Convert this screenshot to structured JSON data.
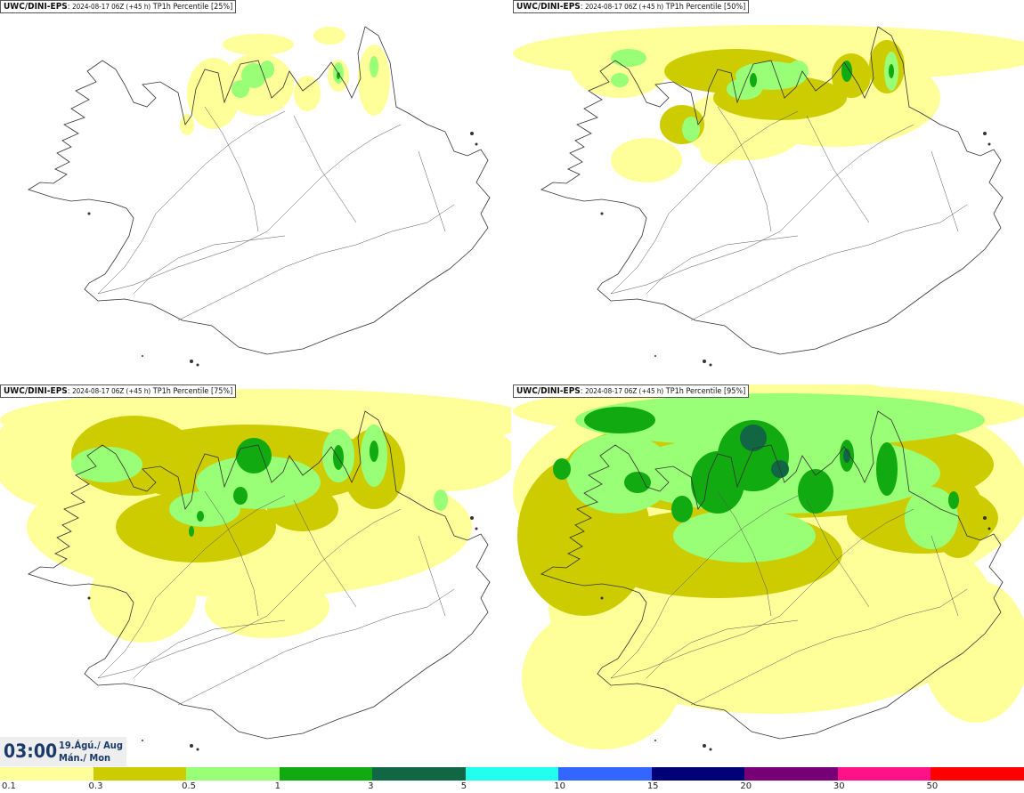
{
  "panels": [
    {
      "source": "UWC/DINI-EPS",
      "run": "2024-08-17 06Z (+45 h)",
      "field": "TP1h Percentile [25%]"
    },
    {
      "source": "UWC/DINI-EPS",
      "run": "2024-08-17 06Z (+45 h)",
      "field": "TP1h Percentile [50%]"
    },
    {
      "source": "UWC/DINI-EPS",
      "run": "2024-08-17 06Z (+45 h)",
      "field": "TP1h Percentile [75%]"
    },
    {
      "source": "UWC/DINI-EPS",
      "run": "2024-08-17 06Z (+45 h)",
      "field": "TP1h Percentile [95%]"
    }
  ],
  "valid_time": {
    "time": "03:00",
    "date_line1": "19.Ágú./ Aug",
    "date_line2": "Mán./ Mon"
  },
  "legend": {
    "labels": [
      "0.1",
      "0.3",
      "0.5",
      "1",
      "3",
      "5",
      "10",
      "15",
      "20",
      "30",
      "50"
    ],
    "colors": [
      "#ffff99",
      "#cccc00",
      "#99ff77",
      "#11aa11",
      "#116644",
      "#22ffee",
      "#3366ff",
      "#000077",
      "#770077",
      "#ff1188",
      "#ff0000"
    ]
  }
}
